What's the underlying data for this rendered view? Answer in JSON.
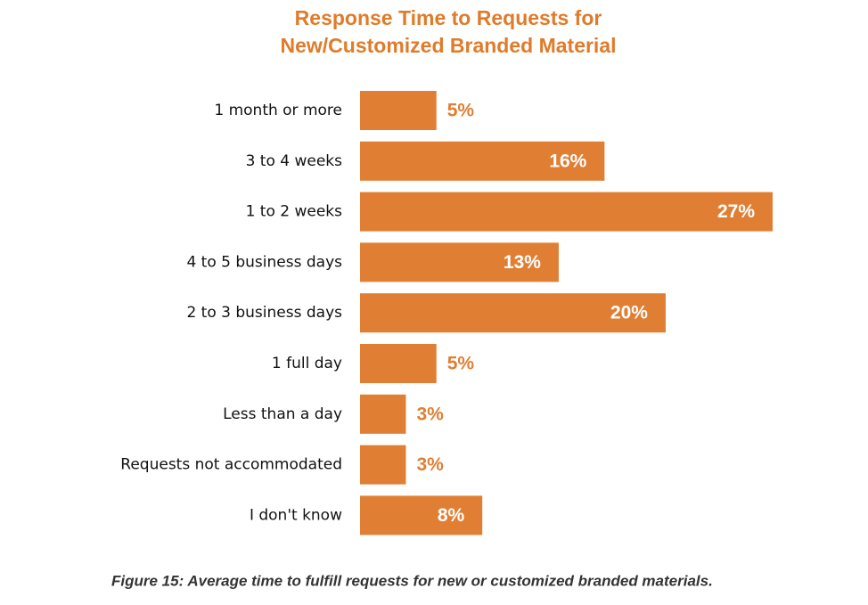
{
  "chart_data": {
    "type": "bar",
    "orientation": "horizontal",
    "title": [
      "Response Time to Requests for",
      "New/Customized Branded Material"
    ],
    "categories": [
      "1 month or more",
      "3 to 4 weeks",
      "1 to 2 weeks",
      "4 to 5 business days",
      "2 to 3 business days",
      "1 full day",
      "Less than a day",
      "Requests not accommodated",
      "I don't know"
    ],
    "values": [
      5,
      16,
      27,
      13,
      20,
      5,
      3,
      3,
      8
    ],
    "value_labels": [
      "5%",
      "16%",
      "27%",
      "13%",
      "20%",
      "5%",
      "3%",
      "3%",
      "8%"
    ],
    "color": "#e07f33",
    "caption": "Figure 15: Average time to fulfill requests for new or customized branded materials."
  }
}
